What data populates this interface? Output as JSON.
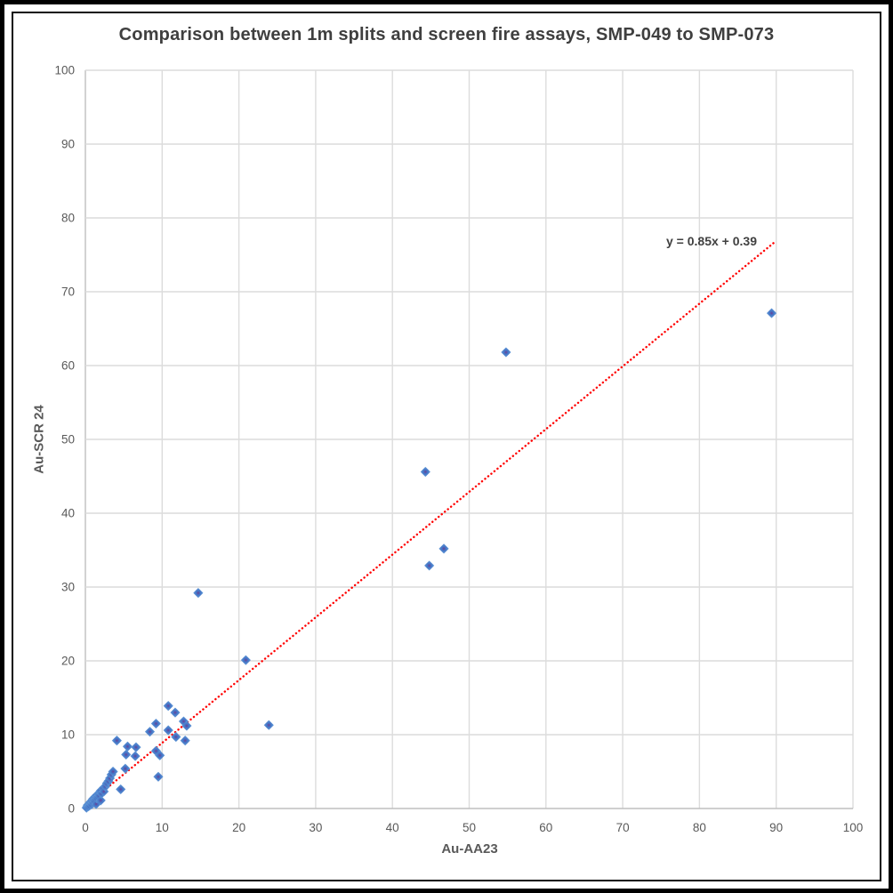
{
  "chart_data": {
    "type": "scatter",
    "title": "Comparison between 1m splits and screen fire assays, SMP-049 to SMP-073",
    "xlabel": "Au-AA23",
    "ylabel": "Au-SCR 24",
    "xlim": [
      0,
      100
    ],
    "ylim": [
      0,
      100
    ],
    "xticks": [
      0,
      10,
      20,
      30,
      40,
      50,
      60,
      70,
      80,
      90,
      100
    ],
    "yticks": [
      0,
      10,
      20,
      30,
      40,
      50,
      60,
      70,
      80,
      90,
      100
    ],
    "grid": true,
    "legend": "none",
    "marker": {
      "shape": "diamond",
      "color": "#4472c4",
      "edge_color": "#8fc0ea",
      "center_color": "#6d3d92"
    },
    "grid_color": "#dcdcdc",
    "axis_color": "#bfbfbf",
    "points": [
      [
        0.15,
        0.1
      ],
      [
        0.25,
        0.25
      ],
      [
        0.3,
        0.45
      ],
      [
        0.4,
        0.3
      ],
      [
        0.5,
        0.55
      ],
      [
        0.55,
        0.4
      ],
      [
        0.6,
        0.8
      ],
      [
        0.7,
        0.65
      ],
      [
        0.8,
        0.55
      ],
      [
        0.8,
        1.0
      ],
      [
        0.9,
        0.85
      ],
      [
        1.0,
        0.75
      ],
      [
        1.0,
        1.3
      ],
      [
        1.1,
        1.1
      ],
      [
        1.2,
        0.95
      ],
      [
        1.2,
        1.5
      ],
      [
        1.3,
        1.3
      ],
      [
        1.4,
        0.6
      ],
      [
        1.4,
        1.7
      ],
      [
        1.5,
        1.4
      ],
      [
        1.6,
        1.65
      ],
      [
        1.7,
        2.0
      ],
      [
        1.8,
        1.75
      ],
      [
        1.9,
        2.2
      ],
      [
        2.0,
        1.1
      ],
      [
        2.0,
        2.4
      ],
      [
        2.1,
        2.05
      ],
      [
        2.3,
        2.7
      ],
      [
        2.4,
        2.3
      ],
      [
        2.6,
        3.0
      ],
      [
        2.8,
        3.4
      ],
      [
        3.0,
        3.7
      ],
      [
        3.2,
        4.1
      ],
      [
        3.4,
        4.6
      ],
      [
        3.6,
        5.0
      ],
      [
        5.2,
        5.4
      ],
      [
        4.6,
        2.6
      ],
      [
        9.5,
        4.3
      ],
      [
        4.1,
        9.2
      ],
      [
        5.5,
        8.4
      ],
      [
        6.6,
        8.3
      ],
      [
        5.3,
        7.3
      ],
      [
        6.5,
        7.1
      ],
      [
        9.2,
        7.8
      ],
      [
        9.7,
        7.2
      ],
      [
        8.4,
        10.4
      ],
      [
        9.2,
        11.5
      ],
      [
        10.8,
        10.6
      ],
      [
        11.8,
        9.7
      ],
      [
        13.0,
        9.2
      ],
      [
        10.8,
        13.9
      ],
      [
        11.7,
        13.0
      ],
      [
        12.8,
        11.8
      ],
      [
        13.2,
        11.2
      ],
      [
        14.7,
        29.2
      ],
      [
        20.9,
        20.1
      ],
      [
        23.9,
        11.3
      ],
      [
        44.3,
        45.6
      ],
      [
        44.8,
        32.9
      ],
      [
        46.7,
        35.2
      ],
      [
        54.8,
        61.8
      ],
      [
        89.4,
        67.1
      ]
    ],
    "trendline": {
      "label": "y = 0.85x + 0.39",
      "slope": 0.85,
      "intercept": 0.39,
      "x_start": 0,
      "x_end": 89.8,
      "color": "#ff0000",
      "style": "dotted"
    }
  }
}
